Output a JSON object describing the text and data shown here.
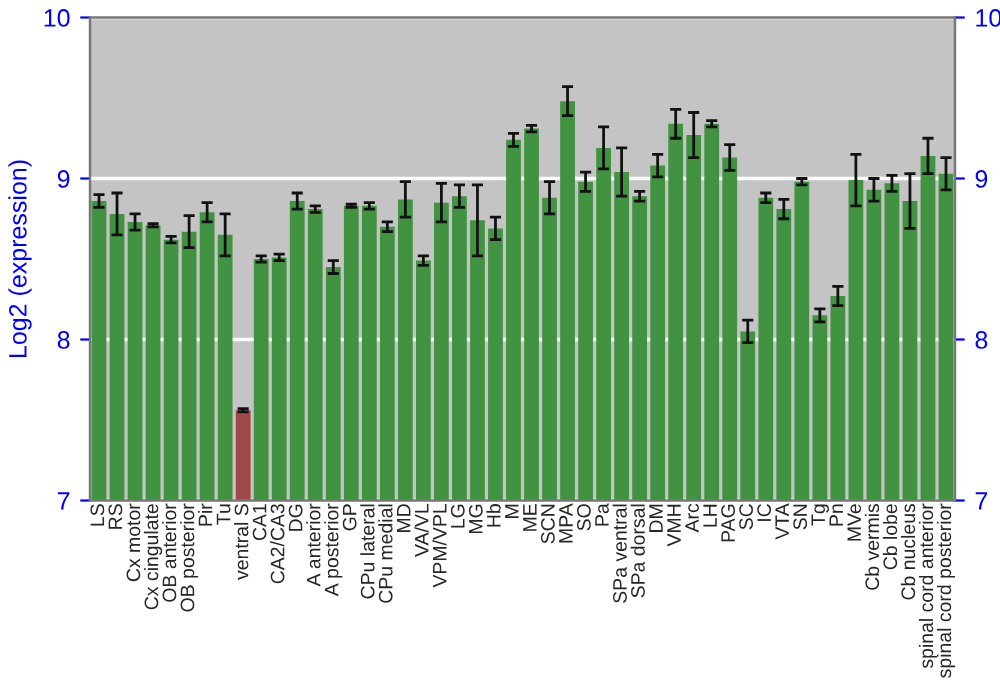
{
  "chart_data": {
    "type": "bar",
    "ylabel": "Log2 (expression)",
    "categories": [
      "LS",
      "RS",
      "Cx motor",
      "Cx cingulate",
      "OB anterior",
      "OB posterior",
      "Pir",
      "Tu",
      "ventral S",
      "CA1",
      "CA2/CA3",
      "DG",
      "A anterior",
      "A posterior",
      "GP",
      "CPu lateral",
      "CPu medial",
      "MD",
      "VA/VL",
      "VPM/VPL",
      "LG",
      "MG",
      "Hb",
      "M",
      "ME",
      "SCN",
      "MPA",
      "SO",
      "Pa",
      "SPa ventral",
      "SPa dorsal",
      "DM",
      "VMH",
      "Arc",
      "LH",
      "PAG",
      "SC",
      "IC",
      "VTA",
      "SN",
      "Tg",
      "Pn",
      "MVe",
      "Cb vermis",
      "Cb lobe",
      "Cb nucleus",
      "spinal cord anterior",
      "spinal cord posterior"
    ],
    "values": [
      8.86,
      8.78,
      8.73,
      8.71,
      8.62,
      8.67,
      8.79,
      8.65,
      7.56,
      8.5,
      8.51,
      8.86,
      8.81,
      8.45,
      8.83,
      8.83,
      8.7,
      8.87,
      8.49,
      8.85,
      8.89,
      8.74,
      8.69,
      9.24,
      9.31,
      8.88,
      9.48,
      8.98,
      9.19,
      9.04,
      8.89,
      9.08,
      9.34,
      9.27,
      9.34,
      9.13,
      8.05,
      8.88,
      8.81,
      8.98,
      8.15,
      8.27,
      8.99,
      8.93,
      8.97,
      8.86,
      9.14,
      9.03
    ],
    "errors": [
      0.04,
      0.13,
      0.05,
      0.01,
      0.02,
      0.1,
      0.06,
      0.13,
      0.01,
      0.02,
      0.02,
      0.05,
      0.02,
      0.04,
      0.01,
      0.02,
      0.03,
      0.11,
      0.03,
      0.12,
      0.07,
      0.22,
      0.07,
      0.04,
      0.02,
      0.1,
      0.09,
      0.06,
      0.13,
      0.15,
      0.03,
      0.07,
      0.09,
      0.14,
      0.02,
      0.08,
      0.07,
      0.03,
      0.06,
      0.02,
      0.04,
      0.06,
      0.16,
      0.07,
      0.05,
      0.17,
      0.11,
      0.1
    ],
    "colors": [
      "#33a033",
      "#33a033",
      "#33a033",
      "#33a033",
      "#33a033",
      "#33a033",
      "#33a033",
      "#33a033",
      "#b03a3a",
      "#33a033",
      "#33a033",
      "#33a033",
      "#33a033",
      "#33a033",
      "#33a033",
      "#33a033",
      "#33a033",
      "#33a033",
      "#33a033",
      "#33a033",
      "#33a033",
      "#33a033",
      "#33a033",
      "#33a033",
      "#33a033",
      "#33a033",
      "#33a033",
      "#33a033",
      "#33a033",
      "#33a033",
      "#33a033",
      "#33a033",
      "#33a033",
      "#33a033",
      "#33a033",
      "#33a033",
      "#33a033",
      "#33a033",
      "#33a033",
      "#33a033",
      "#33a033",
      "#33a033",
      "#33a033",
      "#33a033",
      "#33a033",
      "#33a033",
      "#33a033",
      "#33a033"
    ],
    "ylim": [
      7,
      10
    ],
    "yticks": [
      7,
      8,
      9,
      10
    ],
    "y2lim": [
      7,
      10
    ],
    "y2ticks": [
      7,
      8,
      9,
      10
    ],
    "grid": "y"
  }
}
